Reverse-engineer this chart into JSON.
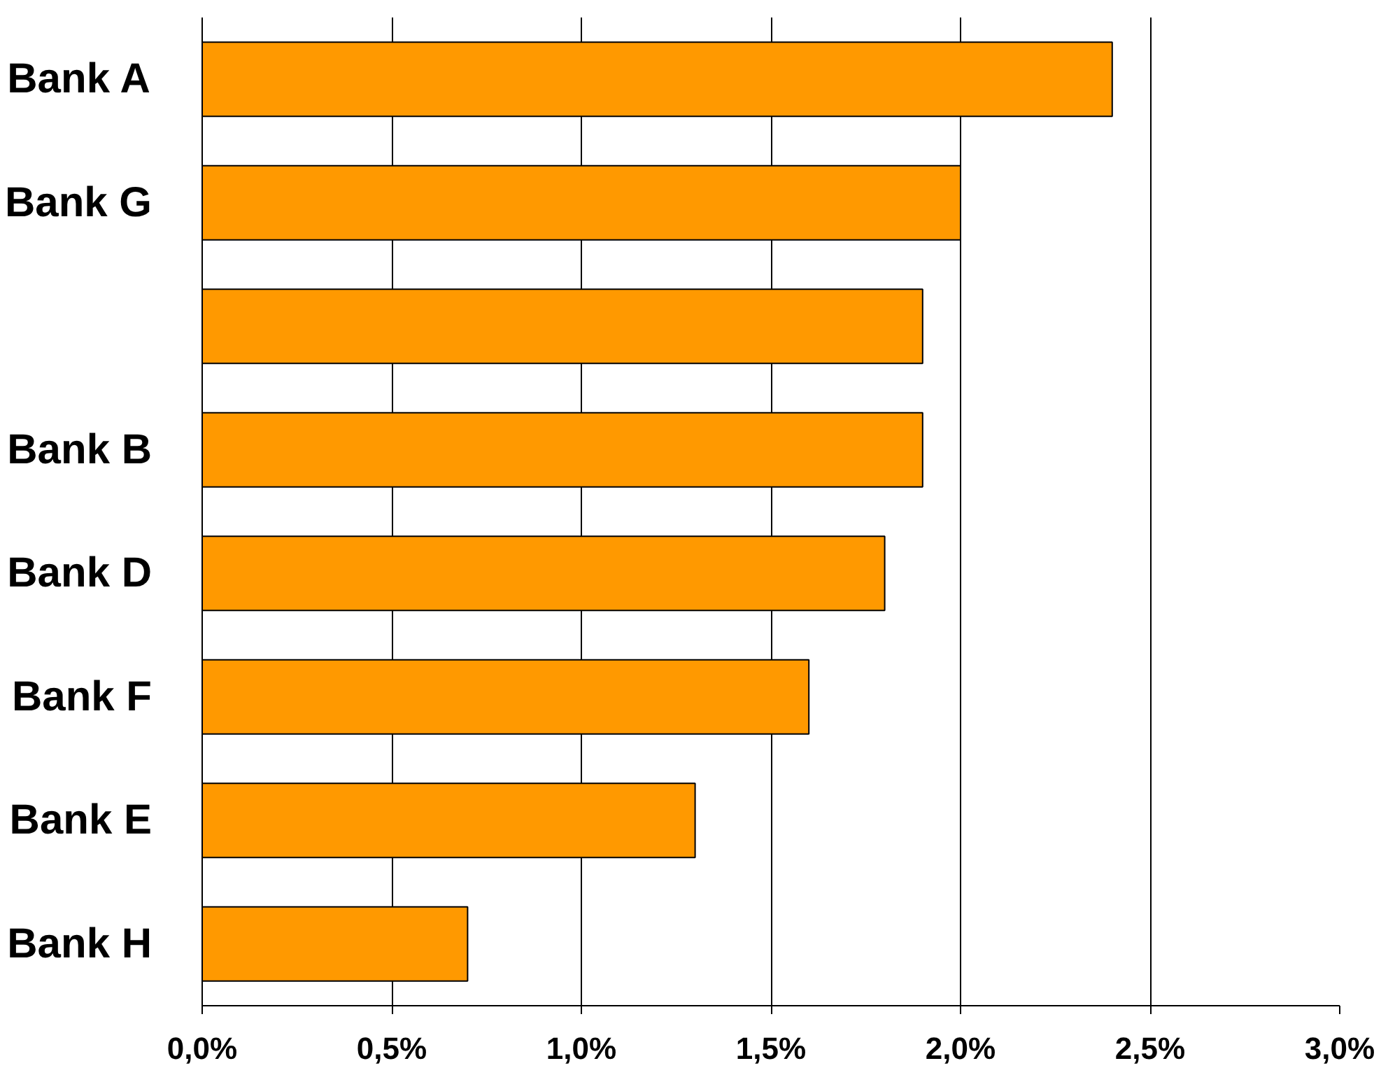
{
  "chart_data": {
    "type": "bar",
    "orientation": "horizontal",
    "categories": [
      "Bank A",
      "Bank G",
      null,
      "Bank B",
      "Bank D",
      "Bank F",
      "Bank E",
      "Bank H"
    ],
    "values": [
      2.4,
      2.0,
      1.9,
      1.9,
      1.8,
      1.6,
      1.3,
      0.7
    ],
    "color": "#ff9900",
    "xlim": [
      0,
      3
    ],
    "xticks": [
      {
        "value": 0,
        "label": "0,0%"
      },
      {
        "value": 0.5,
        "label": "0,5%"
      },
      {
        "value": 1,
        "label": "1,0%"
      },
      {
        "value": 1.5,
        "label": "1,5%"
      },
      {
        "value": 2,
        "label": "2,0%"
      },
      {
        "value": 2.5,
        "label": "2,5%"
      },
      {
        "value": 3,
        "label": "3,0%"
      }
    ],
    "grid": "x"
  }
}
